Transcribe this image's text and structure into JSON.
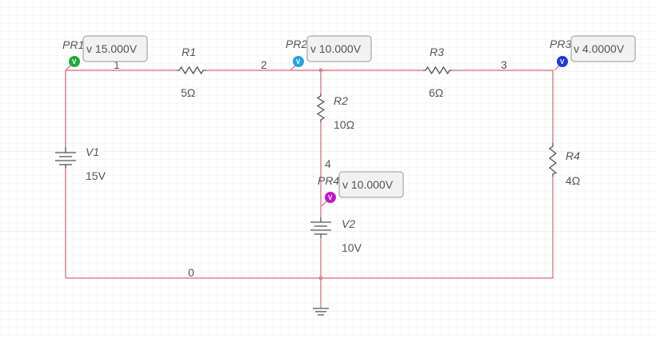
{
  "colors": {
    "wire": "#e0838f",
    "component": "#555555",
    "grid_minor": "#f0f0f0",
    "grid_major": "#e2e2e2",
    "probe_pr1": "#22a83a",
    "probe_pr2": "#29a3e0",
    "probe_pr3": "#1e3ad6",
    "probe_pr4": "#c416c4"
  },
  "nodes": [
    "1",
    "2",
    "3",
    "4",
    "0"
  ],
  "components": {
    "r1": {
      "name": "R1",
      "value": "5Ω"
    },
    "r2": {
      "name": "R2",
      "value": "10Ω"
    },
    "r3": {
      "name": "R3",
      "value": "6Ω"
    },
    "r4": {
      "name": "R4",
      "value": "4Ω"
    },
    "v1": {
      "name": "V1",
      "value": "15V"
    },
    "v2": {
      "name": "V2",
      "value": "10V"
    }
  },
  "probes": {
    "pr1": {
      "name": "PR1",
      "reading": "v 15.000V",
      "icon": "V"
    },
    "pr2": {
      "name": "PR2",
      "reading": "v 10.000V",
      "icon": "V"
    },
    "pr3": {
      "name": "PR3",
      "reading": "v 4.0000V",
      "icon": "V"
    },
    "pr4": {
      "name": "PR4",
      "reading": "v 10.000V",
      "icon": "V"
    }
  }
}
